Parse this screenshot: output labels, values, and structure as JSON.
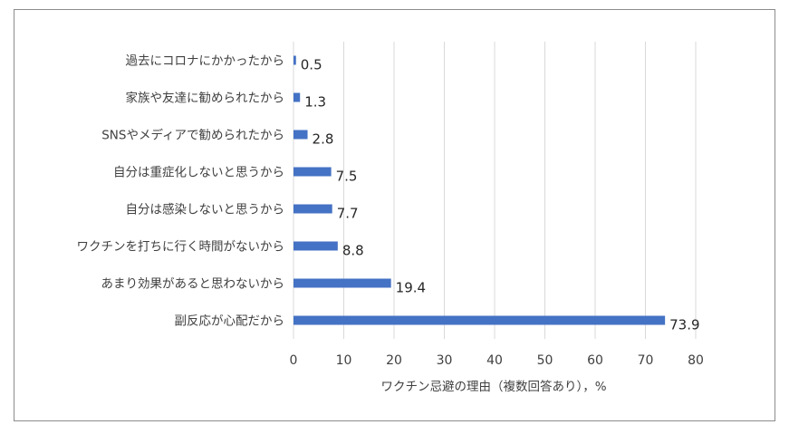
{
  "chart_data": {
    "type": "bar",
    "orientation": "horizontal",
    "categories": [
      "過去にコロナにかかったから",
      "家族や友達に勧められたから",
      "SNSやメディアで勧められたから",
      "自分は重症化しないと思うから",
      "自分は感染しないと思うから",
      "ワクチンを打ちに行く時間がないから",
      "あまり効果があると思わないから",
      "副反応が心配だから"
    ],
    "values": [
      0.5,
      1.3,
      2.8,
      7.5,
      7.7,
      8.8,
      19.4,
      73.9
    ],
    "value_labels": [
      "0.5",
      "1.3",
      "2.8",
      "7.5",
      "7.7",
      "8.8",
      "19.4",
      "73.9"
    ],
    "xlabel": "ワクチン忌避の理由（複数回答あり），%",
    "xlim": [
      0,
      80
    ],
    "xticks": [
      "0",
      "10",
      "20",
      "30",
      "40",
      "50",
      "60",
      "70",
      "80"
    ],
    "grid": "vertical",
    "bar_color": "#4472c4",
    "grid_color": "#d9d9d9",
    "legend": "none"
  }
}
